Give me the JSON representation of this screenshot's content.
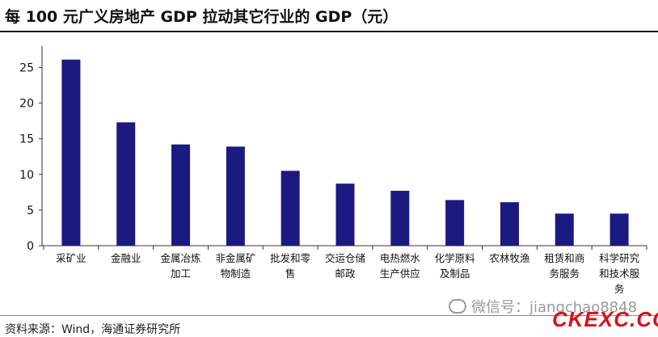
{
  "title": "每 100 元广义房地产 GDP 拉动其它行业的 GDP（元）",
  "source": "资料来源：Wind，海通证券研究所",
  "watermark": "微信号：jiangchao8848",
  "brand": "CKEXC.COM",
  "colors": {
    "bar": "#1a1a80",
    "axis": "#333333",
    "brand": "#d8111a"
  },
  "chart_data": {
    "type": "bar",
    "title": "每 100 元广义房地产 GDP 拉动其它行业的 GDP（元）",
    "categories": [
      [
        "采矿业"
      ],
      [
        "金融业"
      ],
      [
        "金属冶炼",
        "加工"
      ],
      [
        "非金属矿",
        "物制造"
      ],
      [
        "批发和零",
        "售"
      ],
      [
        "交运仓储",
        "邮政"
      ],
      [
        "电热燃水",
        "生产供应"
      ],
      [
        "化学原料",
        "及制品"
      ],
      [
        "农林牧渔"
      ],
      [
        "租赁和商",
        "务服务"
      ],
      [
        "科学研究",
        "和技术服",
        "务"
      ]
    ],
    "values": [
      26.1,
      17.3,
      14.2,
      13.9,
      10.5,
      8.7,
      7.7,
      6.4,
      6.1,
      4.5,
      4.5
    ],
    "yticks": [
      0,
      5,
      10,
      15,
      20,
      25
    ],
    "ylim": [
      0,
      28
    ],
    "grid": false
  }
}
